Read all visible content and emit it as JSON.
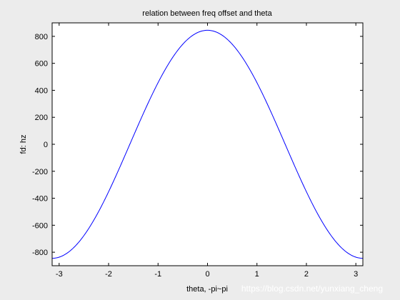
{
  "chart_data": {
    "type": "line",
    "title": "relation between freq offset and theta",
    "xlabel": "theta, -pi~pi",
    "ylabel": "fd: hz",
    "xlim": [
      -3.14159,
      3.14159
    ],
    "ylim": [
      -900,
      900
    ],
    "xticks": [
      -3,
      -2,
      -1,
      0,
      1,
      2,
      3
    ],
    "yticks": [
      -800,
      -600,
      -400,
      -200,
      0,
      200,
      400,
      600,
      800
    ],
    "grid": false,
    "series": [
      {
        "color": "#0000ff",
        "function": "fd = 845 * cos(theta)",
        "amplitude": 845,
        "x_samples": [
          -3.14159,
          -2.5,
          -2,
          -1.5,
          -1,
          -0.5,
          0,
          0.5,
          1,
          1.5,
          2,
          2.5,
          3.14159
        ],
        "y_samples": [
          -845,
          -677,
          -352,
          60,
          457,
          742,
          845,
          742,
          457,
          60,
          -352,
          -677,
          -845
        ]
      }
    ]
  },
  "watermark": "https://blog.csdn.net/yunxiang_cheng",
  "colors": {
    "background": "#ececec",
    "plot_bg": "#ffffff",
    "line": "#0000ff"
  }
}
